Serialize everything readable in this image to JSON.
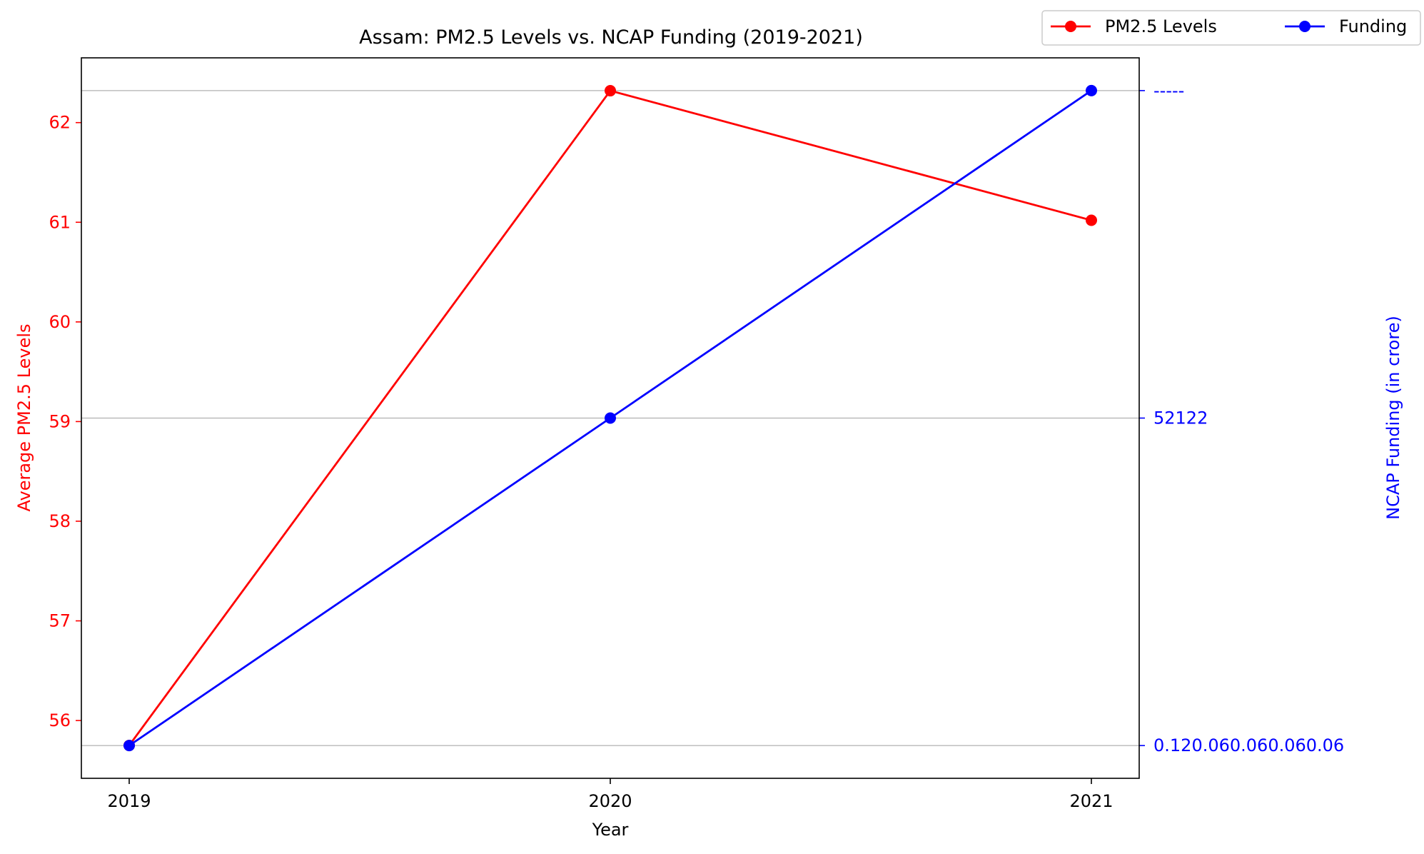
{
  "chart_data": {
    "type": "line",
    "title": "Assam: PM2.5 Levels vs. NCAP Funding (2019-2021)",
    "xlabel": "Year",
    "ylabel_left": "Average PM2.5 Levels",
    "ylabel_right": "NCAP Funding (in crore)",
    "categories": [
      "2019",
      "2020",
      "2021"
    ],
    "ylim_left": [
      55.42,
      62.65
    ],
    "yticks_left": [
      56,
      57,
      58,
      59,
      60,
      61,
      62
    ],
    "ylim_right": [
      -0.1,
      2.1
    ],
    "yticks_right": [
      {
        "value": 0,
        "label": "0.120.060.060.060.06"
      },
      {
        "value": 1,
        "label": "52122"
      },
      {
        "value": 2,
        "label": "-----"
      }
    ],
    "series": [
      {
        "name": "PM2.5 Levels",
        "axis": "left",
        "color": "#ff0000",
        "values": [
          55.75,
          62.32,
          61.02
        ]
      },
      {
        "name": "Funding",
        "axis": "right",
        "color": "#0000ff",
        "values": [
          0,
          1,
          2
        ]
      }
    ],
    "grid": "horizontal-right-axis",
    "legend_position": "top-right",
    "colors": {
      "left_axis": "#ff0000",
      "right_axis": "#0000ff"
    }
  }
}
